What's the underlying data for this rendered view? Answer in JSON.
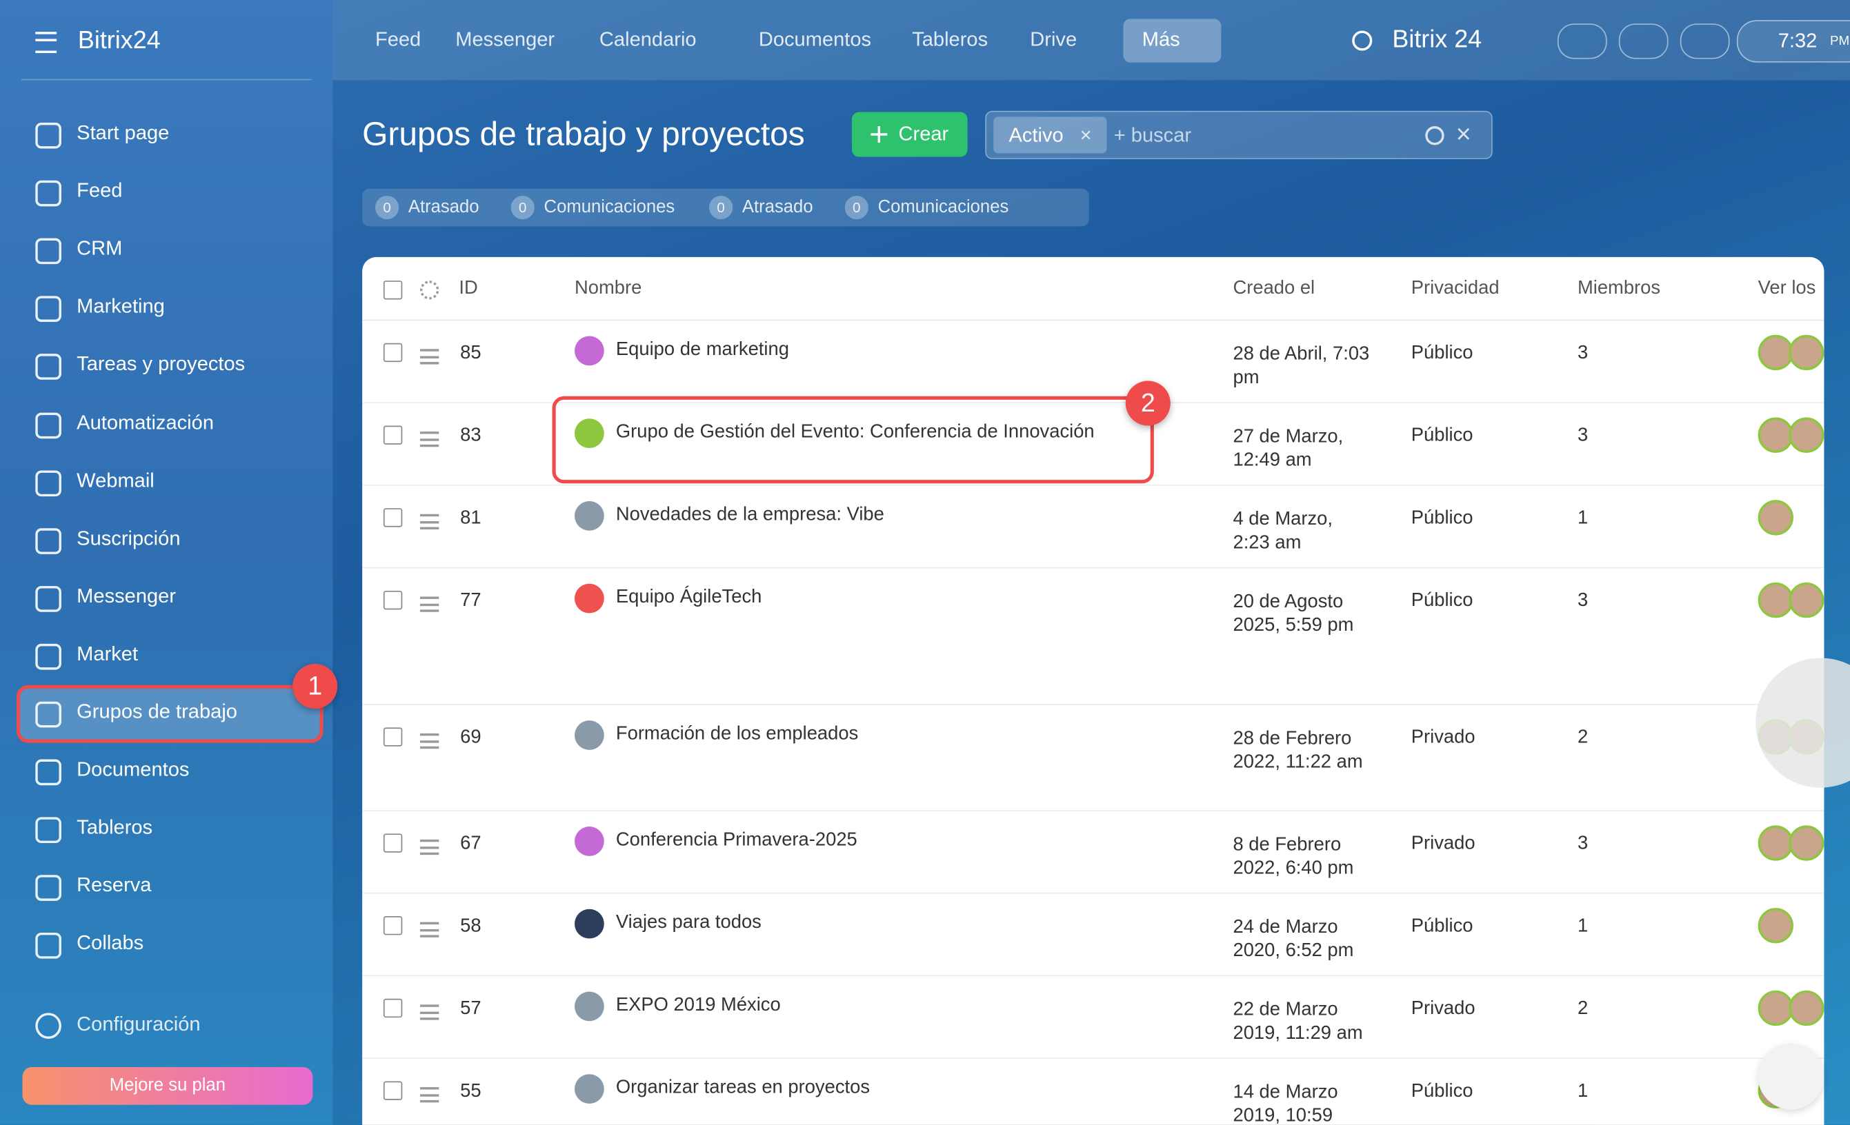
{
  "app": {
    "logo": "Bitrix24",
    "brand": "Bitrix 24",
    "time": "7:32",
    "ampm": "PM"
  },
  "top_nav": [
    "Feed",
    "Messenger",
    "Calendario",
    "Documentos",
    "Tableros",
    "Drive",
    "Más"
  ],
  "sidebar": {
    "items": [
      "Start page",
      "Feed",
      "CRM",
      "Marketing",
      "Tareas y proyectos",
      "Automatización",
      "Webmail",
      "Suscripción",
      "Messenger",
      "Market",
      "Grupos de trabajo",
      "Documentos",
      "Tableros",
      "Reserva",
      "Collabs"
    ],
    "settings": "Configuración",
    "upgrade": "Mejore su plan"
  },
  "header": {
    "title": "Grupos de trabajo y proyectos",
    "create": "Crear",
    "filter_tag": "Activo",
    "search_placeholder": "+ buscar"
  },
  "counters": [
    {
      "count": 0,
      "label": "Atrasado"
    },
    {
      "count": 0,
      "label": "Comunicaciones"
    },
    {
      "count": 0,
      "label": "Atrasado"
    },
    {
      "count": 0,
      "label": "Comunicaciones"
    }
  ],
  "table": {
    "headers": [
      "ID",
      "Nombre",
      "Creado el",
      "Privacidad",
      "Miembros",
      "Ver los"
    ],
    "rows": [
      {
        "id": 85,
        "name": "Equipo de marketing",
        "created": "28 de Abril, 7:03 pm",
        "privacy": "Público",
        "members": 3
      },
      {
        "id": 83,
        "name": "Grupo de Gestión del Evento: Conferencia de Innovación",
        "created": "27 de Marzo, 12:49 am",
        "privacy": "Público",
        "members": 3
      },
      {
        "id": 81,
        "name": "Novedades de la empresa: Vibe",
        "created": "4 de Marzo, 2:23 am",
        "privacy": "Público",
        "members": 1
      },
      {
        "id": 77,
        "name": "Equipo ÁgileTech",
        "created": "20 de Agosto 2025, 5:59 pm",
        "privacy": "Público",
        "members": 3
      },
      {
        "id": 69,
        "name": "Formación de los empleados",
        "created": "28 de Febrero 2022, 11:22 am",
        "privacy": "Privado",
        "members": 2
      },
      {
        "id": 67,
        "name": "Conferencia Primavera-2025",
        "created": "8 de Febrero 2022, 6:40 pm",
        "privacy": "Privado",
        "members": 3
      },
      {
        "id": 58,
        "name": "Viajes para todos",
        "created": "24 de Marzo 2020, 6:52 pm",
        "privacy": "Público",
        "members": 1
      },
      {
        "id": 57,
        "name": "EXPO 2019 México",
        "created": "22 de Marzo 2019, 11:29 am",
        "privacy": "Privado",
        "members": 2
      },
      {
        "id": 55,
        "name": "Organizar tareas en proyectos",
        "created": "14 de Marzo 2019, 10:59",
        "privacy": "Público",
        "members": 1
      }
    ]
  },
  "annotations": [
    1,
    2
  ]
}
